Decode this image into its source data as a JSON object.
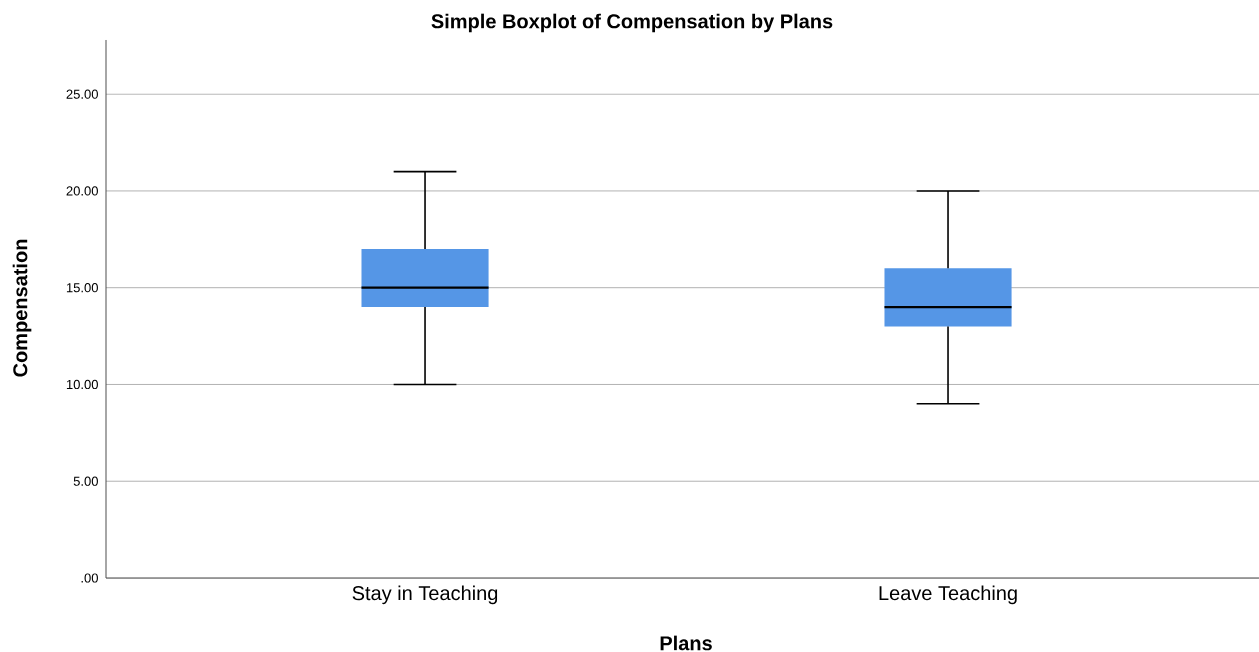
{
  "chart_data": {
    "type": "box",
    "title": "Simple Boxplot of Compensation by Plans",
    "xlabel": "Plans",
    "ylabel": "Compensation",
    "categories": [
      "Stay in Teaching",
      "Leave Teaching"
    ],
    "series": [
      {
        "color": "#5596e6",
        "boxes": [
          {
            "low": 10,
            "q1": 14,
            "median": 15,
            "q3": 17,
            "high": 21
          },
          {
            "low": 9,
            "q1": 13,
            "median": 14,
            "q3": 16,
            "high": 20
          }
        ]
      }
    ],
    "ylim": [
      0,
      27.8
    ],
    "yticks": [
      {
        "value": 0,
        "label": ".00"
      },
      {
        "value": 5,
        "label": "5.00"
      },
      {
        "value": 10,
        "label": "10.00"
      },
      {
        "value": 15,
        "label": "15.00"
      },
      {
        "value": 20,
        "label": "20.00"
      },
      {
        "value": 25,
        "label": "25.00"
      }
    ],
    "grid": "y"
  }
}
